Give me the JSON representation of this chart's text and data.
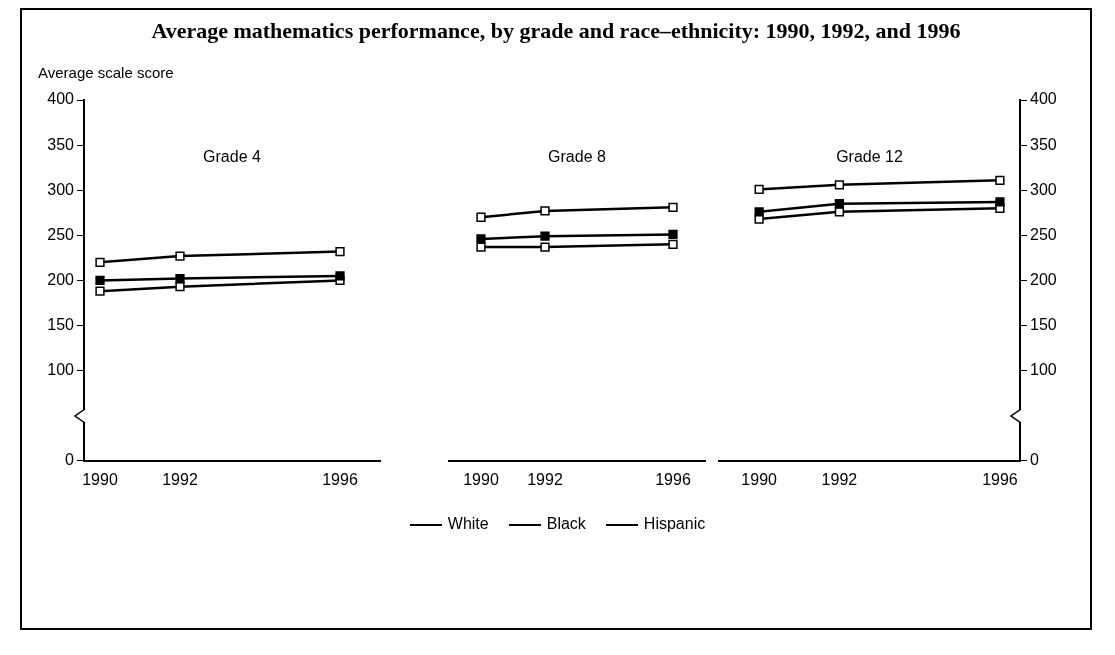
{
  "chart_data": [
    {
      "type": "line",
      "title": "Average mathematics performance, by grade and race–ethnicity: 1990, 1992, and 1996",
      "ylabel": "Average scale score",
      "subtitle": "Grade 4",
      "x": [
        1990,
        1992,
        1996
      ],
      "xlim": [
        1989.6,
        1997
      ],
      "xticks": [
        1990,
        1992,
        1996
      ],
      "ylim": [
        0,
        400
      ],
      "yticks": [
        0,
        100,
        150,
        200,
        250,
        300,
        350,
        400
      ],
      "marker": "square",
      "grid": false,
      "series": [
        {
          "color": "#ffffff",
          "values": [
            220,
            227,
            232
          ]
        },
        {
          "color": "#ffffff",
          "values": [
            188,
            193,
            200
          ]
        },
        {
          "color": "#000000",
          "values": [
            200,
            202,
            205
          ]
        }
      ]
    },
    {
      "type": "line",
      "subtitle": "Grade 8",
      "tick_labels": "x",
      "x": [
        1990,
        1992,
        1996
      ],
      "xlim": [
        1989,
        1997
      ],
      "xticks": [
        1990,
        1992,
        1996
      ],
      "ylim": [
        0,
        400
      ],
      "marker": "square",
      "grid": false,
      "legend": "bottom",
      "series": [
        {
          "name": "White",
          "color": "#ffffff",
          "values": [
            270,
            277,
            281
          ]
        },
        {
          "name": "Black",
          "color": "#ffffff",
          "values": [
            237,
            237,
            240
          ]
        },
        {
          "name": "Hispanic",
          "color": "#000000",
          "values": [
            246,
            249,
            251
          ]
        }
      ]
    },
    {
      "type": "line",
      "subtitle": "Grade 12",
      "x": [
        1990,
        1992,
        1996
      ],
      "xlim": [
        1989,
        1996.5
      ],
      "xticks": [
        1990,
        1992,
        1996
      ],
      "y2lim": [
        0,
        400
      ],
      "y2ticks": [
        0,
        100,
        150,
        200,
        250,
        300,
        350,
        400
      ],
      "marker": "square",
      "grid": false,
      "series": [
        {
          "axis": "y2",
          "color": "#ffffff",
          "values": [
            301,
            306,
            311
          ]
        },
        {
          "axis": "y2",
          "color": "#ffffff",
          "values": [
            268,
            276,
            280
          ]
        },
        {
          "axis": "y2",
          "color": "#000000",
          "values": [
            276,
            285,
            287
          ]
        }
      ]
    }
  ]
}
